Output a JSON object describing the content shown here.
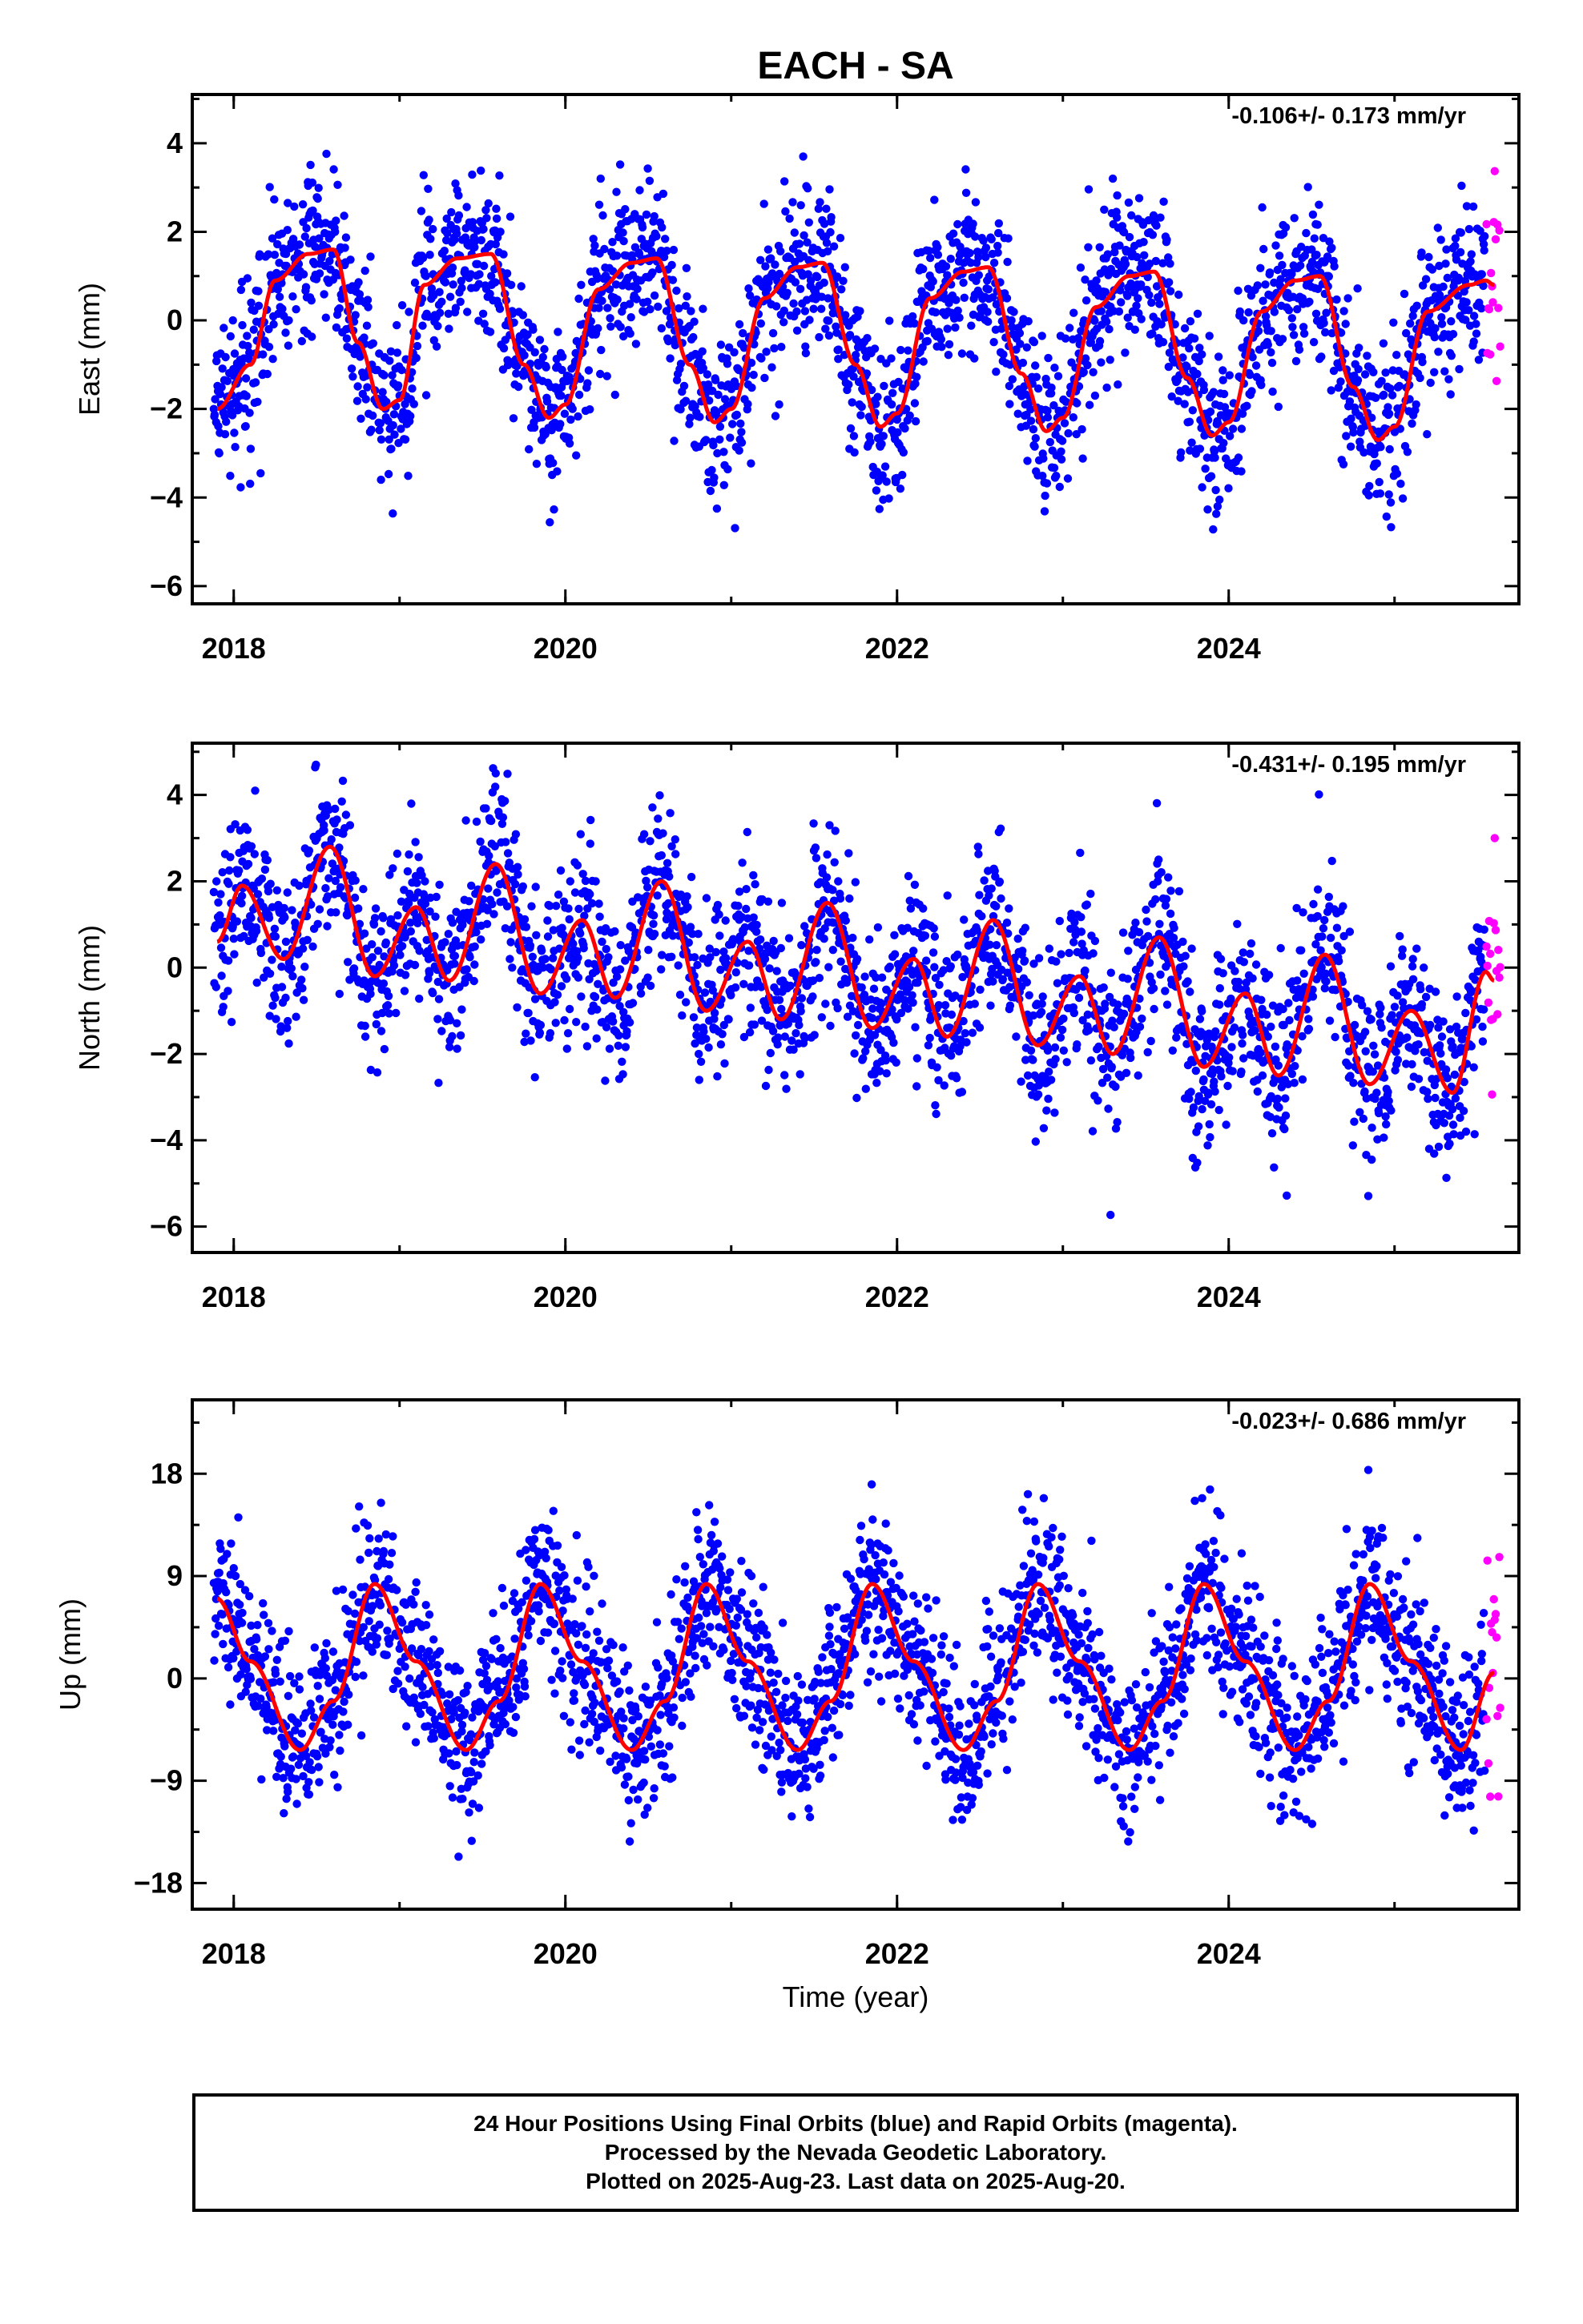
{
  "title": "EACH - SA",
  "xlabel": "Time (year)",
  "caption": [
    "24 Hour Positions Using Final Orbits (blue) and Rapid Orbits (magenta).",
    "Processed by the Nevada Geodetic Laboratory.",
    "Plotted on 2025-Aug-23. Last data on 2025-Aug-20."
  ],
  "colors": {
    "final": "#0000ff",
    "rapid": "#ff00ff",
    "model": "#ff0000",
    "axis": "#000000"
  },
  "chart_data": [
    {
      "type": "scatter",
      "ylabel": "East (mm)",
      "rate": "-0.106+/- 0.173 mm/yr",
      "xlim": [
        2017.75,
        2025.75
      ],
      "ylim": [
        -6.4,
        5.1
      ],
      "xticks": [
        2018,
        2020,
        2022,
        2024
      ],
      "xticklabels": [
        "2018",
        "2020",
        "2022",
        "2024"
      ],
      "yticks": [
        -6,
        -4,
        -2,
        0,
        2,
        4
      ],
      "yticklabels": [
        "−6",
        "−4",
        "−2",
        "0",
        "2",
        "4"
      ],
      "series": [],
      "model": {
        "x": [
          2017.9,
          2018.1,
          2018.25,
          2018.45,
          2018.6,
          2018.75,
          2018.9,
          2019.0,
          2019.15,
          2019.35,
          2019.55,
          2019.75,
          2019.9,
          2020.0,
          2020.2,
          2020.4,
          2020.55,
          2020.75,
          2020.9,
          2021.0,
          2021.2,
          2021.4,
          2021.55,
          2021.75,
          2021.9,
          2022.0,
          2022.2,
          2022.4,
          2022.55,
          2022.75,
          2022.9,
          2023.0,
          2023.2,
          2023.4,
          2023.55,
          2023.75,
          2023.9,
          2024.0,
          2024.2,
          2024.4,
          2024.55,
          2024.75,
          2024.9,
          2025.0,
          2025.2,
          2025.45,
          2025.55,
          2025.6
        ],
        "y": [
          -2.0,
          -1.0,
          0.9,
          1.5,
          1.6,
          -0.5,
          -2.0,
          -1.8,
          0.8,
          1.4,
          1.5,
          -1.0,
          -2.2,
          -1.9,
          0.7,
          1.3,
          1.4,
          -1.0,
          -2.3,
          -2.0,
          0.5,
          1.2,
          1.3,
          -1.0,
          -2.4,
          -2.1,
          0.5,
          1.1,
          1.2,
          -1.2,
          -2.5,
          -2.2,
          0.3,
          1.0,
          1.1,
          -1.3,
          -2.6,
          -2.3,
          0.2,
          0.9,
          1.0,
          -1.5,
          -2.7,
          -2.4,
          0.2,
          0.8,
          0.9,
          0.8
        ]
      }
    },
    {
      "type": "scatter",
      "ylabel": "North (mm)",
      "rate": "-0.431+/- 0.195 mm/yr",
      "xlim": [
        2017.75,
        2025.75
      ],
      "ylim": [
        -6.6,
        5.2
      ],
      "xticks": [
        2018,
        2020,
        2022,
        2024
      ],
      "xticklabels": [
        "2018",
        "2020",
        "2022",
        "2024"
      ],
      "yticks": [
        -6,
        -4,
        -2,
        0,
        2,
        4
      ],
      "yticklabels": [
        "−6",
        "−4",
        "−2",
        "0",
        "2",
        "4"
      ],
      "series": [],
      "model": {
        "x": [
          2017.9,
          2018.05,
          2018.3,
          2018.58,
          2018.85,
          2019.1,
          2019.3,
          2019.58,
          2019.85,
          2020.1,
          2020.3,
          2020.58,
          2020.85,
          2021.1,
          2021.3,
          2021.58,
          2021.85,
          2022.1,
          2022.3,
          2022.58,
          2022.85,
          2023.1,
          2023.3,
          2023.58,
          2023.85,
          2024.1,
          2024.3,
          2024.58,
          2024.85,
          2025.1,
          2025.35,
          2025.55,
          2025.6
        ],
        "y": [
          0.6,
          1.9,
          0.2,
          2.8,
          -0.2,
          1.4,
          -0.3,
          2.4,
          -0.6,
          1.1,
          -0.7,
          2.0,
          -1.0,
          0.6,
          -1.2,
          1.5,
          -1.4,
          0.2,
          -1.6,
          1.1,
          -1.8,
          -0.2,
          -2.0,
          0.7,
          -2.3,
          -0.6,
          -2.5,
          0.3,
          -2.7,
          -1.0,
          -2.9,
          -0.1,
          -0.3
        ]
      }
    },
    {
      "type": "scatter",
      "ylabel": "Up (mm)",
      "rate": "-0.023+/- 0.686 mm/yr",
      "xlim": [
        2017.75,
        2025.75
      ],
      "ylim": [
        -20.3,
        24.5
      ],
      "xticks": [
        2018,
        2020,
        2022,
        2024
      ],
      "xticklabels": [
        "2018",
        "2020",
        "2022",
        "2024"
      ],
      "yticks": [
        -18,
        -9,
        0,
        9,
        18
      ],
      "yticklabels": [
        "−18",
        "−9",
        "0",
        "9",
        "18"
      ],
      "series": [],
      "model": {
        "x": [
          2017.9,
          2018.1,
          2018.4,
          2018.6,
          2018.85,
          2019.1,
          2019.4,
          2019.6,
          2019.85,
          2020.1,
          2020.4,
          2020.6,
          2020.85,
          2021.1,
          2021.4,
          2021.6,
          2021.85,
          2022.1,
          2022.4,
          2022.6,
          2022.85,
          2023.1,
          2023.4,
          2023.6,
          2023.85,
          2024.1,
          2024.4,
          2024.6,
          2024.85,
          2025.1,
          2025.4,
          2025.6
        ],
        "y": [
          7.0,
          1.5,
          -6.3,
          -2.0,
          8.3,
          1.5,
          -6.3,
          -2.0,
          8.3,
          1.5,
          -6.3,
          -2.0,
          8.3,
          1.5,
          -6.3,
          -2.0,
          8.3,
          1.5,
          -6.3,
          -2.0,
          8.3,
          1.5,
          -6.3,
          -2.0,
          8.3,
          1.5,
          -6.3,
          -2.0,
          8.3,
          1.5,
          -6.3,
          0.5
        ]
      }
    }
  ]
}
